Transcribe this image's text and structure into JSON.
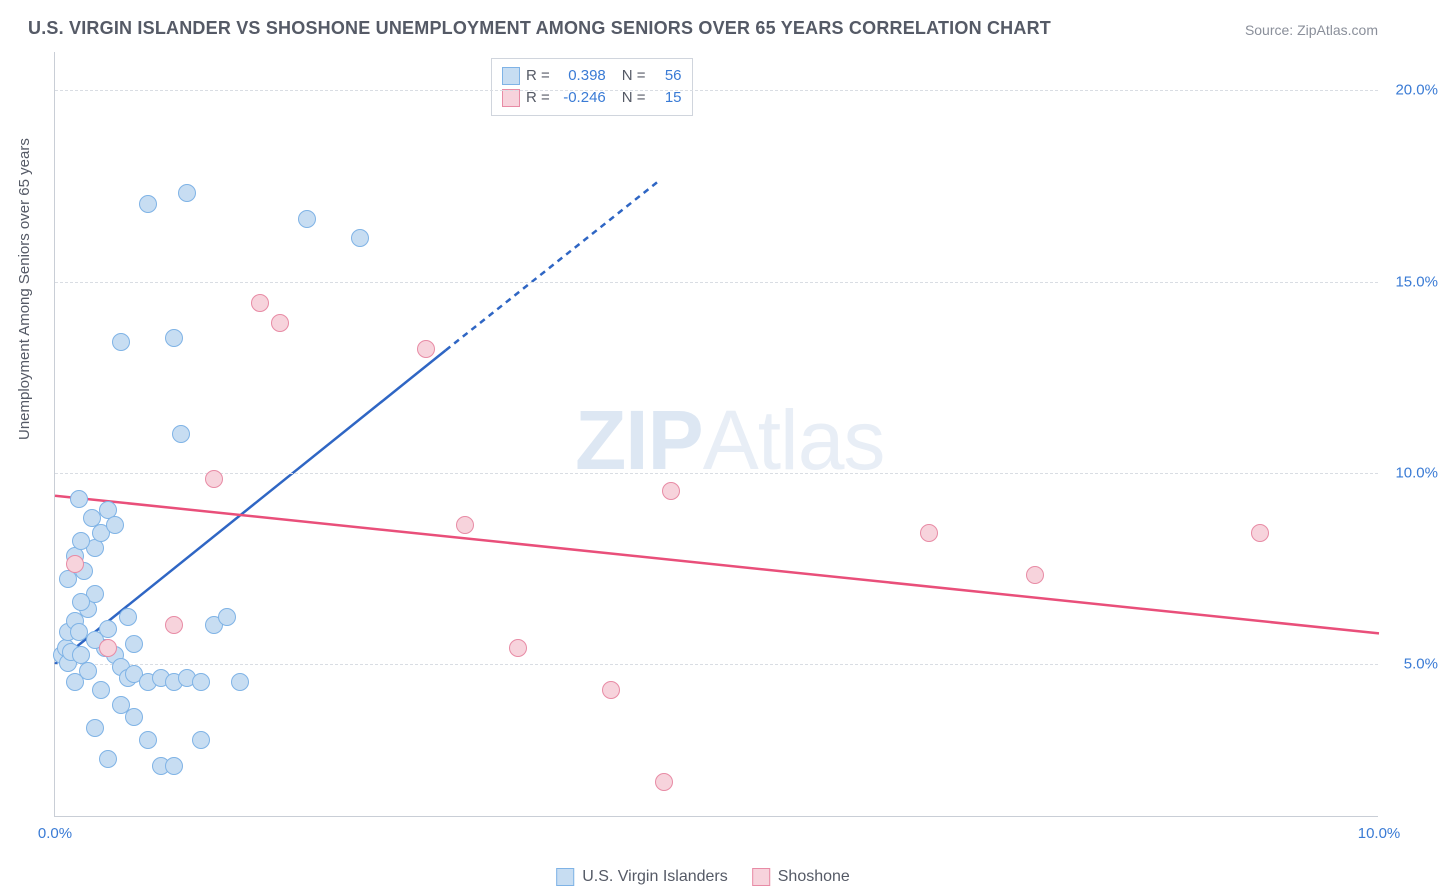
{
  "title": "U.S. VIRGIN ISLANDER VS SHOSHONE UNEMPLOYMENT AMONG SENIORS OVER 65 YEARS CORRELATION CHART",
  "source": "Source: ZipAtlas.com",
  "ylabel": "Unemployment Among Seniors over 65 years",
  "watermark": {
    "bold": "ZIP",
    "rest": "Atlas"
  },
  "chart": {
    "type": "scatter",
    "xlim": [
      0,
      10
    ],
    "ylim": [
      1,
      21
    ],
    "yticks": [
      5,
      10,
      15,
      20
    ],
    "ytick_labels": [
      "5.0%",
      "10.0%",
      "15.0%",
      "20.0%"
    ],
    "xticks": [
      0,
      10
    ],
    "xtick_labels": [
      "0.0%",
      "10.0%"
    ],
    "grid_color": "#d9dde3",
    "axis_color": "#c9ced6",
    "background_color": "#ffffff",
    "series": [
      {
        "name": "U.S. Virgin Islanders",
        "fill": "#c7ddf2",
        "stroke": "#7fb3e6",
        "line_color": "#2f66c4",
        "R": "0.398",
        "N": "56",
        "trend": {
          "x1": 0,
          "y1": 5.0,
          "x2": 2.95,
          "y2": 13.2,
          "dash_to_x": 4.55,
          "dash_to_y": 17.6
        },
        "points": [
          [
            0.05,
            5.2
          ],
          [
            0.08,
            5.4
          ],
          [
            0.1,
            5.0
          ],
          [
            0.12,
            5.3
          ],
          [
            0.1,
            5.8
          ],
          [
            0.15,
            6.1
          ],
          [
            0.2,
            5.2
          ],
          [
            0.18,
            5.8
          ],
          [
            0.25,
            6.4
          ],
          [
            0.3,
            6.8
          ],
          [
            0.22,
            7.4
          ],
          [
            0.3,
            8.0
          ],
          [
            0.35,
            8.4
          ],
          [
            0.28,
            8.8
          ],
          [
            0.4,
            9.0
          ],
          [
            0.18,
            9.3
          ],
          [
            0.1,
            7.2
          ],
          [
            0.15,
            7.8
          ],
          [
            0.2,
            6.6
          ],
          [
            0.38,
            5.4
          ],
          [
            0.45,
            5.2
          ],
          [
            0.5,
            4.9
          ],
          [
            0.55,
            4.6
          ],
          [
            0.6,
            4.7
          ],
          [
            0.7,
            4.5
          ],
          [
            0.8,
            4.6
          ],
          [
            0.9,
            4.5
          ],
          [
            1.0,
            4.6
          ],
          [
            1.1,
            4.5
          ],
          [
            1.2,
            6.0
          ],
          [
            1.3,
            6.2
          ],
          [
            1.4,
            4.5
          ],
          [
            0.35,
            4.3
          ],
          [
            0.5,
            3.9
          ],
          [
            0.6,
            3.6
          ],
          [
            0.7,
            3.0
          ],
          [
            0.3,
            3.3
          ],
          [
            0.4,
            2.5
          ],
          [
            0.8,
            2.3
          ],
          [
            0.9,
            2.3
          ],
          [
            1.1,
            3.0
          ],
          [
            0.95,
            11.0
          ],
          [
            0.5,
            13.4
          ],
          [
            0.9,
            13.5
          ],
          [
            0.7,
            17.0
          ],
          [
            1.0,
            17.3
          ],
          [
            1.9,
            16.6
          ],
          [
            2.3,
            16.1
          ],
          [
            0.3,
            5.6
          ],
          [
            0.4,
            5.9
          ],
          [
            0.55,
            6.2
          ],
          [
            0.6,
            5.5
          ],
          [
            0.25,
            4.8
          ],
          [
            0.15,
            4.5
          ],
          [
            0.45,
            8.6
          ],
          [
            0.2,
            8.2
          ]
        ]
      },
      {
        "name": "Shoshone",
        "fill": "#f7d3dc",
        "stroke": "#e88ba5",
        "line_color": "#e94f7a",
        "R": "-0.246",
        "N": "15",
        "trend": {
          "x1": 0,
          "y1": 9.4,
          "x2": 10,
          "y2": 5.8
        },
        "points": [
          [
            0.15,
            7.6
          ],
          [
            0.4,
            5.4
          ],
          [
            0.9,
            6.0
          ],
          [
            1.2,
            9.8
          ],
          [
            1.55,
            14.4
          ],
          [
            1.7,
            13.9
          ],
          [
            2.8,
            13.2
          ],
          [
            3.1,
            8.6
          ],
          [
            3.5,
            5.4
          ],
          [
            4.2,
            4.3
          ],
          [
            4.6,
            1.9
          ],
          [
            4.65,
            9.5
          ],
          [
            6.6,
            8.4
          ],
          [
            7.4,
            7.3
          ],
          [
            9.1,
            8.4
          ]
        ]
      }
    ]
  },
  "legend_bottom": [
    "U.S. Virgin Islanders",
    "Shoshone"
  ],
  "legend_stats_labels": {
    "R": "R =",
    "N": "N ="
  }
}
